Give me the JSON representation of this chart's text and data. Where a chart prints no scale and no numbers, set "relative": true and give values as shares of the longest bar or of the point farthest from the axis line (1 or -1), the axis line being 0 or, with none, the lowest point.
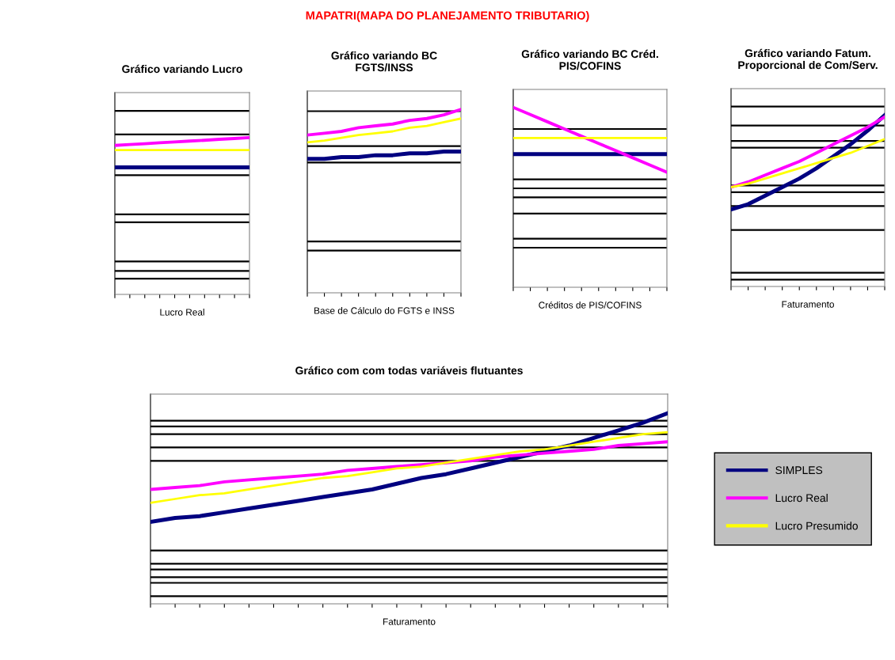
{
  "chart_data": [
    {
      "type": "line",
      "title": "Gráfico variando Lucro",
      "xlabel": "Lucro Real",
      "relative": true,
      "grid": false,
      "legend": false,
      "marker": "none",
      "line_style": "solid",
      "annotations": [
        "MAPATRI(MAPA DO PLANEJAMENTO TRIBUTARIO)"
      ],
      "categories": [
        null,
        null,
        null,
        null,
        null,
        null,
        null,
        null,
        null,
        null
      ],
      "series": [
        {
          "color": "#000080",
          "values": [
            0.81,
            0.81,
            0.81,
            0.81,
            0.81,
            0.81,
            0.81,
            0.81,
            0.81,
            0.81
          ]
        },
        {
          "color": "#ff00ff",
          "values": [
            0.95,
            0.956,
            0.961,
            0.967,
            0.972,
            0.978,
            0.983,
            0.989,
            0.994,
            1.0
          ]
        },
        {
          "color": "#ffff00",
          "values": [
            0.92,
            0.92,
            0.92,
            0.92,
            0.92,
            0.92,
            0.92,
            0.92,
            0.92,
            0.92
          ]
        }
      ],
      "ref_lines": [
        {
          "axis": "y",
          "value": 1.17,
          "color": "#000000"
        },
        {
          "axis": "y",
          "value": 1.02,
          "color": "#000000"
        },
        {
          "axis": "y",
          "value": 0.76,
          "color": "#000000"
        },
        {
          "axis": "y",
          "value": 0.51,
          "color": "#000000"
        },
        {
          "axis": "y",
          "value": 0.46,
          "color": "#000000"
        },
        {
          "axis": "y",
          "value": 0.21,
          "color": "#000000"
        },
        {
          "axis": "y",
          "value": 0.15,
          "color": "#000000"
        },
        {
          "axis": "y",
          "value": 0.1,
          "color": "#000000"
        }
      ]
    },
    {
      "type": "line",
      "title": "Gráfico variando BC\nFGTS/INSS",
      "xlabel": "Base de Cálculo do FGTS e INSS",
      "relative": true,
      "grid": false,
      "legend": false,
      "marker": "none",
      "line_style": "solid",
      "categories": [
        null,
        null,
        null,
        null,
        null,
        null,
        null,
        null,
        null,
        null
      ],
      "series": [
        {
          "color": "#000080",
          "values": [
            0.73,
            0.73,
            0.74,
            0.74,
            0.75,
            0.75,
            0.76,
            0.76,
            0.77,
            0.77
          ]
        },
        {
          "color": "#ff00ff",
          "values": [
            0.86,
            0.87,
            0.88,
            0.9,
            0.91,
            0.92,
            0.94,
            0.95,
            0.97,
            1.0
          ]
        },
        {
          "color": "#ffff00",
          "values": [
            0.82,
            0.83,
            0.845,
            0.86,
            0.87,
            0.88,
            0.9,
            0.91,
            0.93,
            0.95
          ]
        }
      ],
      "ref_lines": [
        {
          "axis": "y",
          "value": 0.99,
          "color": "#000000"
        },
        {
          "axis": "y",
          "value": 0.8,
          "color": "#000000"
        },
        {
          "axis": "y",
          "value": 0.71,
          "color": "#000000"
        },
        {
          "axis": "y",
          "value": 0.28,
          "color": "#000000"
        },
        {
          "axis": "y",
          "value": 0.23,
          "color": "#000000"
        }
      ]
    },
    {
      "type": "line",
      "title": "Gráfico variando BC Créd.\nPIS/COFINS",
      "xlabel": "Créditos de PIS/COFINS",
      "relative": true,
      "grid": false,
      "legend": false,
      "marker": "none",
      "line_style": "solid",
      "categories": [
        null,
        null,
        null,
        null,
        null,
        null,
        null,
        null,
        null,
        null
      ],
      "series": [
        {
          "color": "#000080",
          "values": [
            0.74,
            0.74,
            0.74,
            0.74,
            0.74,
            0.74,
            0.74,
            0.74,
            0.74,
            0.74
          ]
        },
        {
          "color": "#ff00ff",
          "values": [
            1.0,
            0.96,
            0.92,
            0.88,
            0.84,
            0.8,
            0.76,
            0.72,
            0.68,
            0.64
          ]
        },
        {
          "color": "#ffff00",
          "values": [
            0.83,
            0.83,
            0.83,
            0.83,
            0.83,
            0.83,
            0.83,
            0.83,
            0.83,
            0.83
          ]
        }
      ],
      "ref_lines": [
        {
          "axis": "y",
          "value": 0.88,
          "color": "#000000"
        },
        {
          "axis": "y",
          "value": 0.6,
          "color": "#000000"
        },
        {
          "axis": "y",
          "value": 0.55,
          "color": "#000000"
        },
        {
          "axis": "y",
          "value": 0.5,
          "color": "#000000"
        },
        {
          "axis": "y",
          "value": 0.41,
          "color": "#000000"
        },
        {
          "axis": "y",
          "value": 0.27,
          "color": "#000000"
        },
        {
          "axis": "y",
          "value": 0.22,
          "color": "#000000"
        }
      ]
    },
    {
      "type": "line",
      "title": "Gráfico variando Fatum.\nProporcional de Com/Serv.",
      "xlabel": "Faturamento",
      "relative": true,
      "grid": false,
      "legend": false,
      "marker": "none",
      "line_style": "solid",
      "categories": [
        null,
        null,
        null,
        null,
        null,
        null,
        null,
        null,
        null,
        null
      ],
      "series": [
        {
          "color": "#000080",
          "values": [
            0.45,
            0.48,
            0.53,
            0.58,
            0.63,
            0.69,
            0.76,
            0.83,
            0.91,
            1.0
          ]
        },
        {
          "color": "#ff00ff",
          "values": [
            0.58,
            0.61,
            0.65,
            0.69,
            0.73,
            0.78,
            0.83,
            0.88,
            0.93,
            0.99
          ]
        },
        {
          "color": "#ffff00",
          "values": [
            0.58,
            0.6,
            0.63,
            0.66,
            0.69,
            0.72,
            0.75,
            0.78,
            0.82,
            0.86
          ]
        }
      ],
      "ref_lines": [
        {
          "axis": "y",
          "value": 1.05,
          "color": "#000000"
        },
        {
          "axis": "y",
          "value": 0.94,
          "color": "#000000"
        },
        {
          "axis": "y",
          "value": 0.85,
          "color": "#000000"
        },
        {
          "axis": "y",
          "value": 0.81,
          "color": "#000000"
        },
        {
          "axis": "y",
          "value": 0.59,
          "color": "#000000"
        },
        {
          "axis": "y",
          "value": 0.55,
          "color": "#000000"
        },
        {
          "axis": "y",
          "value": 0.47,
          "color": "#000000"
        },
        {
          "axis": "y",
          "value": 0.33,
          "color": "#000000"
        },
        {
          "axis": "y",
          "value": 0.08,
          "color": "#000000"
        },
        {
          "axis": "y",
          "value": 0.04,
          "color": "#000000"
        }
      ]
    },
    {
      "type": "line",
      "title": "Gráfico com com todas variáveis flutuantes",
      "xlabel": "Faturamento",
      "relative": true,
      "grid": false,
      "legend": "right",
      "marker": "none",
      "line_style": "solid",
      "categories": [
        null,
        null,
        null,
        null,
        null,
        null,
        null,
        null,
        null,
        null,
        null,
        null,
        null,
        null,
        null,
        null,
        null,
        null,
        null,
        null,
        null,
        null
      ],
      "series": [
        {
          "name": "SIMPLES",
          "color": "#000080",
          "values": [
            0.43,
            0.45,
            0.46,
            0.48,
            0.5,
            0.52,
            0.54,
            0.56,
            0.58,
            0.6,
            0.63,
            0.66,
            0.68,
            0.71,
            0.74,
            0.77,
            0.8,
            0.83,
            0.87,
            0.91,
            0.95,
            1.0
          ]
        },
        {
          "name": "Lucro Real",
          "color": "#ff00ff",
          "values": [
            0.6,
            0.61,
            0.62,
            0.64,
            0.65,
            0.66,
            0.67,
            0.68,
            0.7,
            0.71,
            0.72,
            0.73,
            0.74,
            0.75,
            0.77,
            0.78,
            0.79,
            0.8,
            0.81,
            0.83,
            0.84,
            0.85
          ]
        },
        {
          "name": "Lucro Presumido",
          "color": "#ffff00",
          "values": [
            0.53,
            0.55,
            0.57,
            0.58,
            0.6,
            0.62,
            0.64,
            0.66,
            0.67,
            0.69,
            0.71,
            0.72,
            0.74,
            0.76,
            0.78,
            0.8,
            0.81,
            0.83,
            0.85,
            0.87,
            0.89,
            0.9
          ]
        }
      ],
      "ref_lines": [
        {
          "axis": "y",
          "value": 0.96,
          "color": "#000000"
        },
        {
          "axis": "y",
          "value": 0.93,
          "color": "#000000"
        },
        {
          "axis": "y",
          "value": 0.89,
          "color": "#000000"
        },
        {
          "axis": "y",
          "value": 0.82,
          "color": "#000000"
        },
        {
          "axis": "y",
          "value": 0.75,
          "color": "#000000"
        },
        {
          "axis": "y",
          "value": 0.28,
          "color": "#000000"
        },
        {
          "axis": "y",
          "value": 0.21,
          "color": "#000000"
        },
        {
          "axis": "y",
          "value": 0.18,
          "color": "#000000"
        },
        {
          "axis": "y",
          "value": 0.14,
          "color": "#000000"
        },
        {
          "axis": "y",
          "value": 0.11,
          "color": "#000000"
        },
        {
          "axis": "y",
          "value": 0.04,
          "color": "#000000"
        }
      ]
    }
  ]
}
